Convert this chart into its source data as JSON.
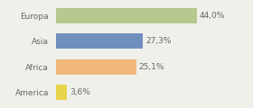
{
  "categories": [
    "Europa",
    "Asia",
    "Africa",
    "America"
  ],
  "values": [
    44.0,
    27.3,
    25.1,
    3.6
  ],
  "labels": [
    "44,0%",
    "27,3%",
    "25,1%",
    "3,6%"
  ],
  "bar_colors": [
    "#b5c98e",
    "#6f8fbd",
    "#f0b87a",
    "#e8d44d"
  ],
  "background_color": "#f0f0eb",
  "text_color": "#666666",
  "label_fontsize": 6.5,
  "tick_fontsize": 6.5,
  "xlim": [
    0,
    60
  ]
}
